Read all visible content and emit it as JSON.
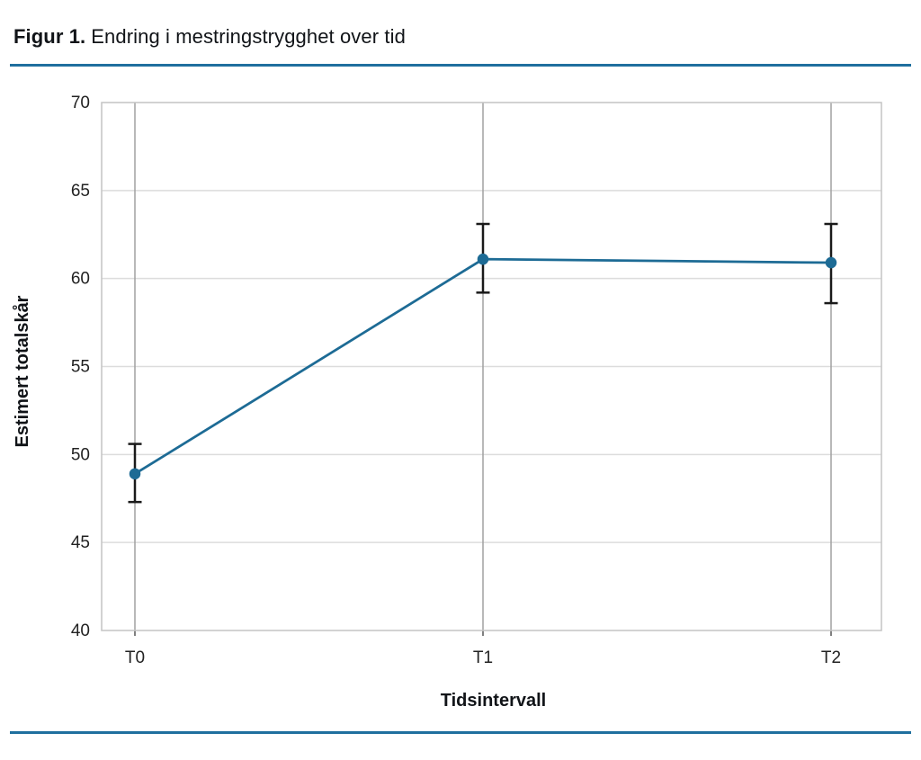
{
  "figure": {
    "title_prefix": "Figur 1.",
    "title_text": "Endring i mestringstrygghet over tid"
  },
  "colors": {
    "series_blue": "#1d6b95",
    "divider_blue": "#1f6f9e",
    "grid_horizontal": "#dcdcdc",
    "grid_vertical": "#a0a0a0",
    "frame": "#c4c4c4",
    "error_bar": "#1a1a1a",
    "text_dark": "#111418",
    "tick_text": "#222222"
  },
  "chart_data": {
    "type": "line",
    "categories": [
      "T0",
      "T1",
      "T2"
    ],
    "series": [
      {
        "name": "Estimert totalskår",
        "values": [
          48.9,
          61.1,
          60.9
        ],
        "ci_low": [
          47.3,
          59.2,
          58.6
        ],
        "ci_high": [
          50.6,
          63.1,
          63.1
        ]
      }
    ],
    "title": "",
    "xlabel": "Tidsintervall",
    "ylabel": "Estimert totalskår",
    "ylim": [
      40,
      70
    ],
    "yticks": [
      40,
      45,
      50,
      55,
      60,
      65,
      70
    ],
    "grid": true,
    "error_bars": true,
    "legend_position": "none",
    "marker": "circle"
  }
}
